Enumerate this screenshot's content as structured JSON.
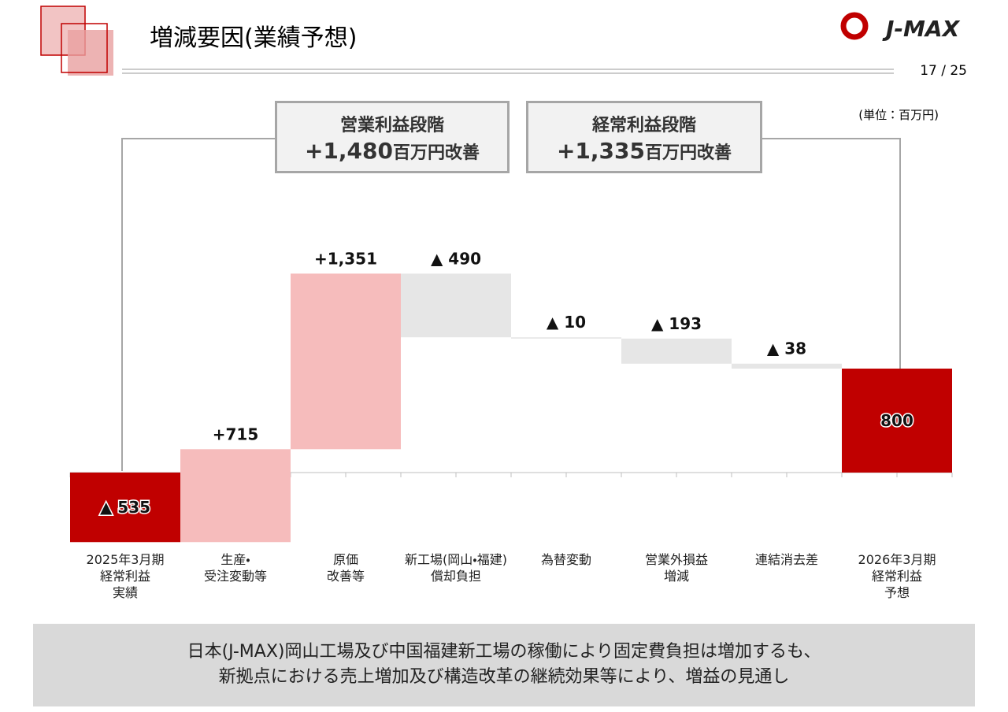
{
  "header": {
    "title": "増減要因(業績予想)",
    "logo": "J-MAX",
    "page": "17 / 25"
  },
  "chart_data": {
    "type": "waterfall",
    "unit_label": "(単位：百万円)",
    "categories": [
      "2025年3月期\n経常利益\n実績",
      "生産・\n受注変動等",
      "原価\n改善等",
      "新工場(岡山・福建)\n償却負担",
      "為替変動",
      "営業外損益\n増減",
      "連結消去差",
      "2026年3月期\n経常利益\n予想"
    ],
    "values": [
      -535,
      715,
      1351,
      -490,
      -10,
      -193,
      -38,
      800
    ],
    "value_labels": [
      "▲ 535",
      "+715",
      "+1,351",
      "▲ 490",
      "▲ 10",
      "▲ 193",
      "▲ 38",
      "800"
    ],
    "colors": [
      "#c00000",
      "#f6bcbc",
      "#f6bcbc",
      "#e6e6e6",
      "#e6e6e6",
      "#e6e6e6",
      "#e6e6e6",
      "#c00000"
    ],
    "annotations": [
      {
        "title": "営業利益段階",
        "amount": "+1,480",
        "unit": "百万円改善"
      },
      {
        "title": "経常利益段階",
        "amount": "+1,335",
        "unit": "百万円改善"
      }
    ]
  },
  "footer": [
    "日本(J-MAX)岡山工場及び中国福建新工場の稼働により固定費負担は増加するも、",
    "新拠点における売上増加及び構造改革の継続効果等により、増益の見通し"
  ]
}
